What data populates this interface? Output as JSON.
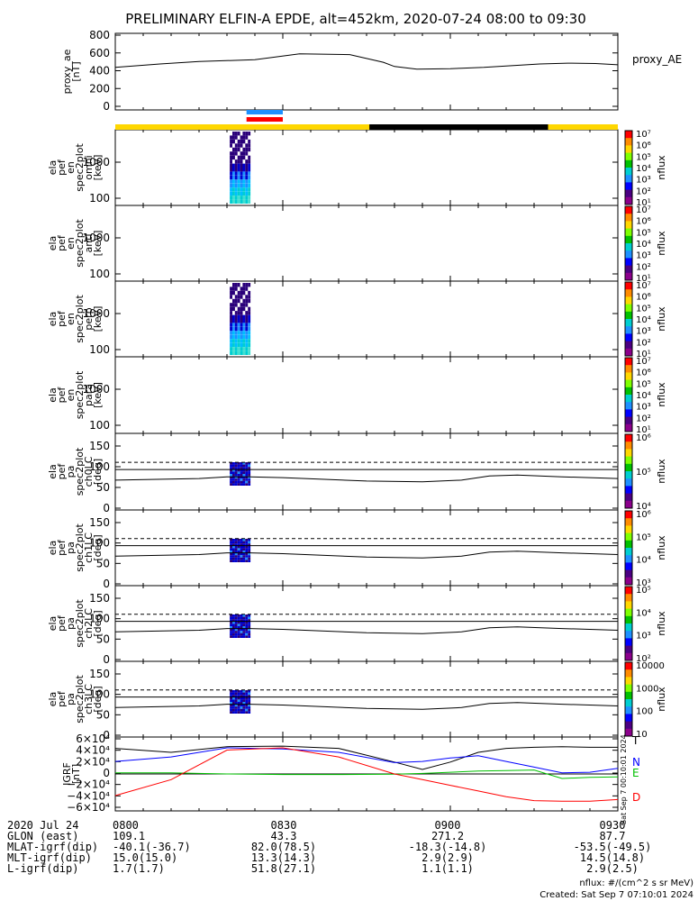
{
  "title": "PRELIMINARY ELFIN-A EPDE, alt=452km, 2020-07-24 08:00 to 09:30",
  "chart_data": [
    {
      "type": "line",
      "ylabel": [
        "proxy_ae",
        "[nT]"
      ],
      "series_label": "proxy_AE",
      "y_ticks": [
        "800",
        "600",
        "400",
        "200",
        "0"
      ],
      "ylim": [
        -50,
        850
      ],
      "x_minutes": [
        0,
        8,
        15,
        25,
        33,
        42,
        48,
        50,
        54,
        60,
        62,
        66,
        71,
        76,
        81,
        86,
        90
      ],
      "values": [
        450,
        490,
        520,
        540,
        610,
        600,
        510,
        460,
        430,
        435,
        440,
        450,
        470,
        490,
        500,
        495,
        480
      ]
    },
    {
      "type": "heatmap",
      "ylabel": [
        "ela",
        "pef",
        "en",
        "spec2plot",
        "omni",
        "[keV]"
      ],
      "y_ticks": [
        "1000",
        "100"
      ],
      "colorbar_ticks": [
        "10⁷",
        "10⁶",
        "10⁵",
        "10⁴",
        "10³",
        "10²",
        "10¹"
      ],
      "colorbar_label": "nflux"
    },
    {
      "type": "heatmap",
      "ylabel": [
        "ela",
        "pef",
        "en",
        "spec2plot",
        "anti",
        "[keV]"
      ],
      "y_ticks": [
        "1000",
        "100"
      ],
      "colorbar_ticks": [
        "10⁷",
        "10⁶",
        "10⁵",
        "10⁴",
        "10³",
        "10²",
        "10¹"
      ],
      "colorbar_label": "nflux"
    },
    {
      "type": "heatmap",
      "ylabel": [
        "ela",
        "pef",
        "en",
        "spec2plot",
        "perp",
        "[keV]"
      ],
      "y_ticks": [
        "1000",
        "100"
      ],
      "colorbar_ticks": [
        "10⁷",
        "10⁶",
        "10⁵",
        "10⁴",
        "10³",
        "10²",
        "10¹"
      ],
      "colorbar_label": "nflux"
    },
    {
      "type": "heatmap",
      "ylabel": [
        "ela",
        "pef",
        "en",
        "spec2plot",
        "para",
        "[keV]"
      ],
      "y_ticks": [
        "1000",
        "100"
      ],
      "colorbar_ticks": [
        "10⁷",
        "10⁶",
        "10⁵",
        "10⁴",
        "10³",
        "10²",
        "10¹"
      ],
      "colorbar_label": "nflux"
    },
    {
      "type": "heatmap",
      "ylabel": [
        "ela",
        "pef",
        "pa",
        "spec2plot",
        "ch0LC",
        "[deg]"
      ],
      "y_ticks": [
        "150",
        "100",
        "50",
        "0"
      ],
      "colorbar_ticks": [
        "10⁶",
        "10⁵",
        "10⁴"
      ],
      "colorbar_label": "nflux"
    },
    {
      "type": "heatmap",
      "ylabel": [
        "ela",
        "pef",
        "pa",
        "spec2plot",
        "ch1LC",
        "[deg]"
      ],
      "y_ticks": [
        "150",
        "100",
        "50",
        "0"
      ],
      "colorbar_ticks": [
        "10⁶",
        "10⁵",
        "10⁴",
        "10³"
      ],
      "colorbar_label": "nflux"
    },
    {
      "type": "heatmap",
      "ylabel": [
        "ela",
        "pef",
        "pa",
        "spec2plot",
        "ch2LC",
        "[deg]"
      ],
      "y_ticks": [
        "150",
        "100",
        "50",
        "0"
      ],
      "colorbar_ticks": [
        "10⁵",
        "10⁴",
        "10³",
        "10²"
      ],
      "colorbar_label": "nflux"
    },
    {
      "type": "heatmap",
      "ylabel": [
        "ela",
        "pef",
        "pa",
        "spec2plot",
        "ch3LC",
        "[deg]"
      ],
      "y_ticks": [
        "150",
        "100",
        "50",
        "0"
      ],
      "colorbar_ticks": [
        "10000",
        "1000",
        "100",
        "10"
      ],
      "colorbar_label": "nflux"
    },
    {
      "type": "line",
      "ylabel": [
        "IGRF",
        "[nT]"
      ],
      "y_ticks": [
        "6×10⁴",
        "4×10⁴",
        "2×10⁴",
        "0",
        "−2×10⁴",
        "−4×10⁴",
        "−6×10⁴"
      ],
      "ylim": [
        -65000,
        65000
      ],
      "x_minutes": [
        0,
        10,
        20,
        30,
        40,
        50,
        55,
        60,
        65,
        70,
        75,
        80,
        85,
        90
      ],
      "series": [
        {
          "name": "T",
          "values": [
            45000,
            38000,
            48000,
            49000,
            45000,
            21000,
            8000,
            21000,
            38000,
            45000,
            47000,
            48000,
            47000,
            47000
          ]
        },
        {
          "name": "N",
          "values": [
            22000,
            30000,
            46000,
            44000,
            38000,
            20000,
            22000,
            28000,
            32000,
            22000,
            12000,
            2000,
            3000,
            10000
          ]
        },
        {
          "name": "E",
          "values": [
            2000,
            2000,
            0,
            -1000,
            -1000,
            -500,
            1000,
            3000,
            5000,
            6000,
            7000,
            -8000,
            -6000,
            -5000
          ]
        },
        {
          "name": "D",
          "values": [
            -38000,
            -10000,
            42000,
            46000,
            30000,
            0,
            -10000,
            -20000,
            -30000,
            -40000,
            -47000,
            -48000,
            -48000,
            -45000
          ]
        }
      ],
      "series_colors": [
        "#000000",
        "#0000ff",
        "#00c000",
        "#ff0000"
      ]
    }
  ],
  "x_ticks": [
    "0800",
    "0830",
    "0900",
    "0930"
  ],
  "ephemeris": {
    "labels": [
      "2020 Jul 24",
      "GLON (east)",
      "MLAT-igrf(dip)",
      "MLT-igrf(dip)",
      "L-igrf(dip)"
    ],
    "columns": [
      [
        "0800",
        "109.1",
        "-40.1(-36.7)",
        "15.0(15.0)",
        "1.7(1.7)"
      ],
      [
        "0830",
        "43.3",
        "82.0(78.5)",
        "13.3(14.3)",
        "51.8(27.1)"
      ],
      [
        "0900",
        "271.2",
        "-18.3(-14.8)",
        "2.9(2.9)",
        "1.1(1.1)"
      ],
      [
        "0930",
        "87.7",
        "-53.5(-49.5)",
        "14.5(14.8)",
        "2.9(2.5)"
      ]
    ]
  },
  "footer": {
    "units": "nflux: #/(cm^2 s sr MeV)",
    "created": "Created: Sat Sep  7 07:10:01 2024",
    "vertical_stamp": "Sat Sep  7 00:10:01 2024"
  },
  "colors": {
    "coverage_bar": "#ffd700",
    "eclipse_bar": "#000000",
    "science_zone_blue": "#1e90ff",
    "science_zone_red": "#ff0000"
  }
}
